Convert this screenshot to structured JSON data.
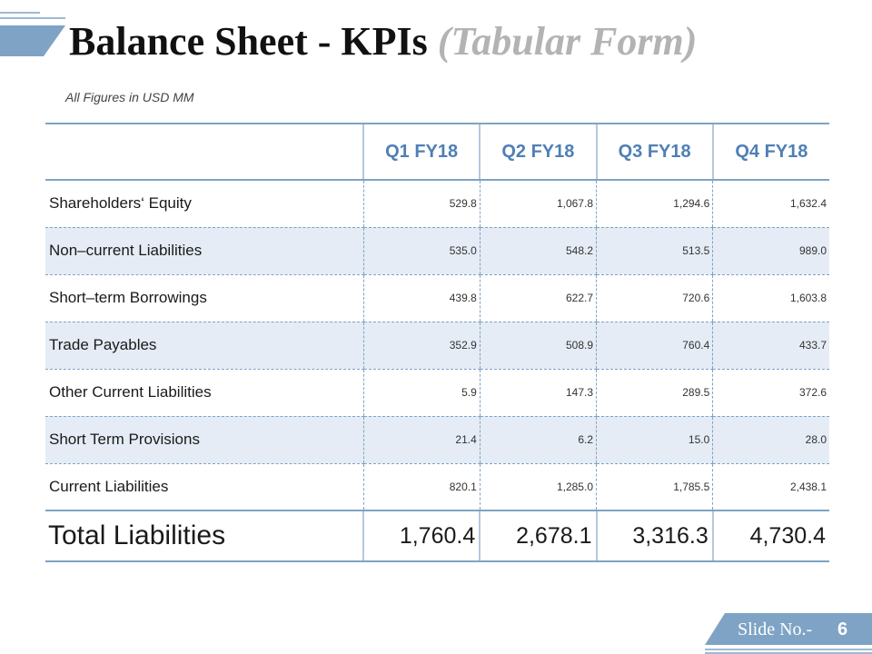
{
  "title": {
    "main": "Balance Sheet - KPIs",
    "sub": "(Tabular Form)"
  },
  "units_note": "All Figures in USD MM",
  "table": {
    "columns": [
      "Q1 FY18",
      "Q2 FY18",
      "Q3 FY18",
      "Q4 FY18"
    ],
    "rows": [
      {
        "label": "Shareholders‘ Equity",
        "values": [
          "529.8",
          "1,067.8",
          "1,294.6",
          "1,632.4"
        ]
      },
      {
        "label": "Non–current Liabilities",
        "values": [
          "535.0",
          "548.2",
          "513.5",
          "989.0"
        ]
      },
      {
        "label": "Short–term Borrowings",
        "values": [
          "439.8",
          "622.7",
          "720.6",
          "1,603.8"
        ]
      },
      {
        "label": "Trade Payables",
        "values": [
          "352.9",
          "508.9",
          "760.4",
          "433.7"
        ]
      },
      {
        "label": "Other Current Liabilities",
        "values": [
          "5.9",
          "147.3",
          "289.5",
          "372.6"
        ]
      },
      {
        "label": "Short Term Provisions",
        "values": [
          "21.4",
          "6.2",
          "15.0",
          "28.0"
        ]
      },
      {
        "label": "Current Liabilities",
        "values": [
          "820.1",
          "1,285.0",
          "1,785.5",
          "2,438.1"
        ]
      }
    ],
    "total": {
      "label": "Total Liabilities",
      "values": [
        "1,760.4",
        "2,678.1",
        "3,316.3",
        "4,730.4"
      ]
    }
  },
  "footer": {
    "slide_label": "Slide No.-",
    "slide_number": "6"
  },
  "colors": {
    "accent": "#7ea3c5",
    "header_text": "#4f7fb6",
    "alt_row": "#e5ecf5",
    "subtitle": "#b3b3b3"
  }
}
